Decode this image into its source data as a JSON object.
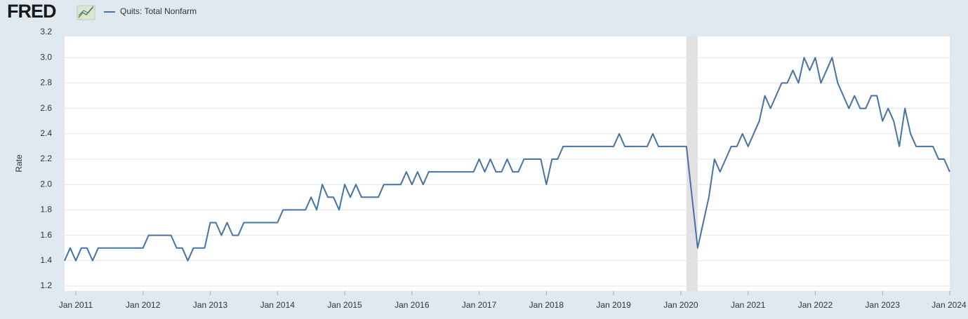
{
  "header": {
    "logo": "FRED"
  },
  "chart_data": {
    "type": "line",
    "y_label": "Rate",
    "x": [
      "2010-11",
      "2010-12",
      "2011-01",
      "2011-02",
      "2011-03",
      "2011-04",
      "2011-05",
      "2011-06",
      "2011-07",
      "2011-08",
      "2011-09",
      "2011-10",
      "2011-11",
      "2011-12",
      "2012-01",
      "2012-02",
      "2012-03",
      "2012-04",
      "2012-05",
      "2012-06",
      "2012-07",
      "2012-08",
      "2012-09",
      "2012-10",
      "2012-11",
      "2012-12",
      "2013-01",
      "2013-02",
      "2013-03",
      "2013-04",
      "2013-05",
      "2013-06",
      "2013-07",
      "2013-08",
      "2013-09",
      "2013-10",
      "2013-11",
      "2013-12",
      "2014-01",
      "2014-02",
      "2014-03",
      "2014-04",
      "2014-05",
      "2014-06",
      "2014-07",
      "2014-08",
      "2014-09",
      "2014-10",
      "2014-11",
      "2014-12",
      "2015-01",
      "2015-02",
      "2015-03",
      "2015-04",
      "2015-05",
      "2015-06",
      "2015-07",
      "2015-08",
      "2015-09",
      "2015-10",
      "2015-11",
      "2015-12",
      "2016-01",
      "2016-02",
      "2016-03",
      "2016-04",
      "2016-05",
      "2016-06",
      "2016-07",
      "2016-08",
      "2016-09",
      "2016-10",
      "2016-11",
      "2016-12",
      "2017-01",
      "2017-02",
      "2017-03",
      "2017-04",
      "2017-05",
      "2017-06",
      "2017-07",
      "2017-08",
      "2017-09",
      "2017-10",
      "2017-11",
      "2017-12",
      "2018-01",
      "2018-02",
      "2018-03",
      "2018-04",
      "2018-05",
      "2018-06",
      "2018-07",
      "2018-08",
      "2018-09",
      "2018-10",
      "2018-11",
      "2018-12",
      "2019-01",
      "2019-02",
      "2019-03",
      "2019-04",
      "2019-05",
      "2019-06",
      "2019-07",
      "2019-08",
      "2019-09",
      "2019-10",
      "2019-11",
      "2019-12",
      "2020-01",
      "2020-02",
      "2020-03",
      "2020-04",
      "2020-05",
      "2020-06",
      "2020-07",
      "2020-08",
      "2020-09",
      "2020-10",
      "2020-11",
      "2020-12",
      "2021-01",
      "2021-02",
      "2021-03",
      "2021-04",
      "2021-05",
      "2021-06",
      "2021-07",
      "2021-08",
      "2021-09",
      "2021-10",
      "2021-11",
      "2021-12",
      "2022-01",
      "2022-02",
      "2022-03",
      "2022-04",
      "2022-05",
      "2022-06",
      "2022-07",
      "2022-08",
      "2022-09",
      "2022-10",
      "2022-11",
      "2022-12",
      "2023-01",
      "2023-02",
      "2023-03",
      "2023-04",
      "2023-05",
      "2023-06",
      "2023-07",
      "2023-08",
      "2023-09",
      "2023-10",
      "2023-11",
      "2023-12",
      "2024-01"
    ],
    "series": [
      {
        "name": "Quits: Total Nonfarm",
        "color": "#4572a7",
        "values": [
          1.4,
          1.5,
          1.4,
          1.5,
          1.5,
          1.4,
          1.5,
          1.5,
          1.5,
          1.5,
          1.5,
          1.5,
          1.5,
          1.5,
          1.5,
          1.6,
          1.6,
          1.6,
          1.6,
          1.6,
          1.5,
          1.5,
          1.4,
          1.5,
          1.5,
          1.5,
          1.7,
          1.7,
          1.6,
          1.7,
          1.6,
          1.6,
          1.7,
          1.7,
          1.7,
          1.7,
          1.7,
          1.7,
          1.7,
          1.8,
          1.8,
          1.8,
          1.8,
          1.8,
          1.9,
          1.8,
          2.0,
          1.9,
          1.9,
          1.8,
          2.0,
          1.9,
          2.0,
          1.9,
          1.9,
          1.9,
          1.9,
          2.0,
          2.0,
          2.0,
          2.0,
          2.1,
          2.0,
          2.1,
          2.0,
          2.1,
          2.1,
          2.1,
          2.1,
          2.1,
          2.1,
          2.1,
          2.1,
          2.1,
          2.2,
          2.1,
          2.2,
          2.1,
          2.1,
          2.2,
          2.1,
          2.1,
          2.2,
          2.2,
          2.2,
          2.2,
          2.0,
          2.2,
          2.2,
          2.3,
          2.3,
          2.3,
          2.3,
          2.3,
          2.3,
          2.3,
          2.3,
          2.3,
          2.3,
          2.4,
          2.3,
          2.3,
          2.3,
          2.3,
          2.3,
          2.4,
          2.3,
          2.3,
          2.3,
          2.3,
          2.3,
          2.3,
          1.9,
          1.5,
          1.7,
          1.9,
          2.2,
          2.1,
          2.2,
          2.3,
          2.3,
          2.4,
          2.3,
          2.4,
          2.5,
          2.7,
          2.6,
          2.7,
          2.8,
          2.8,
          2.9,
          2.8,
          3.0,
          2.9,
          3.0,
          2.8,
          2.9,
          3.0,
          2.8,
          2.7,
          2.6,
          2.7,
          2.6,
          2.6,
          2.7,
          2.7,
          2.5,
          2.6,
          2.5,
          2.3,
          2.6,
          2.4,
          2.3,
          2.3,
          2.3,
          2.3,
          2.2,
          2.2,
          2.1
        ]
      }
    ],
    "shading": [
      {
        "start": "2020-02",
        "end": "2020-04",
        "color": "#e1e1e1"
      }
    ],
    "xlim": [
      "2010-11",
      "2024-01"
    ],
    "xticks": [
      {
        "value": "2011-01",
        "label": "Jan 2011"
      },
      {
        "value": "2012-01",
        "label": "Jan 2012"
      },
      {
        "value": "2013-01",
        "label": "Jan 2013"
      },
      {
        "value": "2014-01",
        "label": "Jan 2014"
      },
      {
        "value": "2015-01",
        "label": "Jan 2015"
      },
      {
        "value": "2016-01",
        "label": "Jan 2016"
      },
      {
        "value": "2017-01",
        "label": "Jan 2017"
      },
      {
        "value": "2018-01",
        "label": "Jan 2018"
      },
      {
        "value": "2019-01",
        "label": "Jan 2019"
      },
      {
        "value": "2020-01",
        "label": "Jan 2020"
      },
      {
        "value": "2021-01",
        "label": "Jan 2021"
      },
      {
        "value": "2022-01",
        "label": "Jan 2022"
      },
      {
        "value": "2023-01",
        "label": "Jan 2023"
      },
      {
        "value": "2024-01",
        "label": "Jan 2024"
      }
    ],
    "ylim": [
      1.2,
      3.2
    ],
    "yticks": [
      1.2,
      1.4,
      1.6,
      1.8,
      {
        "value": 2,
        "label": "2.0"
      },
      2.2,
      2.4,
      2.6,
      2.8,
      {
        "value": 3,
        "label": "3.0"
      },
      3.2
    ],
    "grid": true
  }
}
